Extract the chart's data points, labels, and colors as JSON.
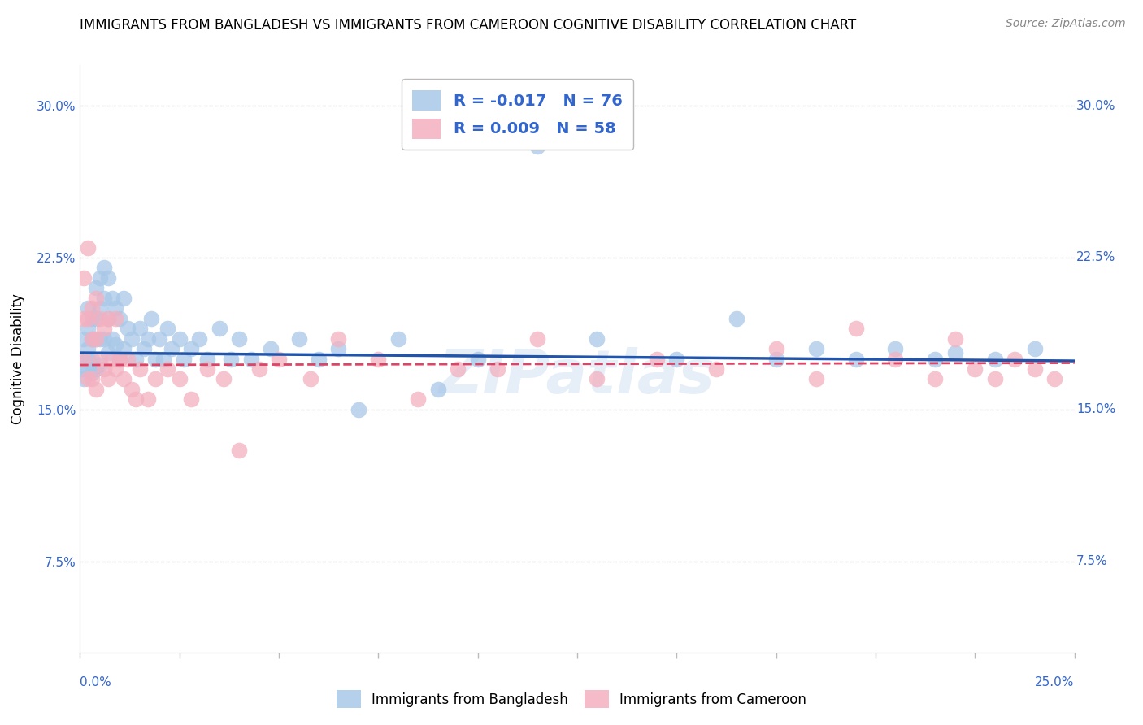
{
  "title": "IMMIGRANTS FROM BANGLADESH VS IMMIGRANTS FROM CAMEROON COGNITIVE DISABILITY CORRELATION CHART",
  "source": "Source: ZipAtlas.com",
  "ylabel": "Cognitive Disability",
  "xlim": [
    0.0,
    0.25
  ],
  "ylim": [
    0.03,
    0.32
  ],
  "ytick_positions": [
    0.075,
    0.15,
    0.225,
    0.3
  ],
  "ytick_labels": [
    "7.5%",
    "15.0%",
    "22.5%",
    "30.0%"
  ],
  "bangladesh_color": "#a8c8e8",
  "cameroon_color": "#f4b0c0",
  "bangladesh_line_color": "#2255aa",
  "cameroon_line_color": "#dd4466",
  "legend_R_bangladesh": "-0.017",
  "legend_N_bangladesh": "76",
  "legend_R_cameroon": "0.009",
  "legend_N_cameroon": "58",
  "watermark": "ZIPatlas",
  "bangladesh_x": [
    0.001,
    0.001,
    0.001,
    0.001,
    0.002,
    0.002,
    0.002,
    0.002,
    0.002,
    0.003,
    0.003,
    0.003,
    0.003,
    0.004,
    0.004,
    0.004,
    0.004,
    0.005,
    0.005,
    0.005,
    0.005,
    0.006,
    0.006,
    0.006,
    0.007,
    0.007,
    0.007,
    0.008,
    0.008,
    0.009,
    0.009,
    0.01,
    0.01,
    0.011,
    0.011,
    0.012,
    0.013,
    0.014,
    0.015,
    0.016,
    0.017,
    0.018,
    0.019,
    0.02,
    0.021,
    0.022,
    0.023,
    0.025,
    0.026,
    0.028,
    0.03,
    0.032,
    0.035,
    0.038,
    0.04,
    0.043,
    0.048,
    0.055,
    0.06,
    0.065,
    0.07,
    0.08,
    0.09,
    0.1,
    0.115,
    0.13,
    0.15,
    0.165,
    0.175,
    0.185,
    0.195,
    0.205,
    0.215,
    0.22,
    0.23,
    0.24
  ],
  "bangladesh_y": [
    0.185,
    0.175,
    0.17,
    0.165,
    0.2,
    0.19,
    0.18,
    0.175,
    0.17,
    0.195,
    0.185,
    0.175,
    0.168,
    0.21,
    0.195,
    0.185,
    0.17,
    0.215,
    0.2,
    0.185,
    0.172,
    0.22,
    0.205,
    0.185,
    0.215,
    0.195,
    0.178,
    0.205,
    0.185,
    0.2,
    0.182,
    0.195,
    0.175,
    0.205,
    0.18,
    0.19,
    0.185,
    0.175,
    0.19,
    0.18,
    0.185,
    0.195,
    0.175,
    0.185,
    0.175,
    0.19,
    0.18,
    0.185,
    0.175,
    0.18,
    0.185,
    0.175,
    0.19,
    0.175,
    0.185,
    0.175,
    0.18,
    0.185,
    0.175,
    0.18,
    0.15,
    0.185,
    0.16,
    0.175,
    0.28,
    0.185,
    0.175,
    0.195,
    0.175,
    0.18,
    0.175,
    0.18,
    0.175,
    0.178,
    0.175,
    0.18
  ],
  "cameroon_x": [
    0.001,
    0.001,
    0.001,
    0.002,
    0.002,
    0.002,
    0.003,
    0.003,
    0.003,
    0.004,
    0.004,
    0.004,
    0.005,
    0.005,
    0.006,
    0.006,
    0.007,
    0.007,
    0.008,
    0.009,
    0.009,
    0.01,
    0.011,
    0.012,
    0.013,
    0.014,
    0.015,
    0.017,
    0.019,
    0.022,
    0.025,
    0.028,
    0.032,
    0.036,
    0.04,
    0.045,
    0.05,
    0.058,
    0.065,
    0.075,
    0.085,
    0.095,
    0.105,
    0.115,
    0.13,
    0.145,
    0.16,
    0.175,
    0.185,
    0.195,
    0.205,
    0.215,
    0.22,
    0.225,
    0.23,
    0.235,
    0.24,
    0.245
  ],
  "cameroon_y": [
    0.215,
    0.195,
    0.175,
    0.23,
    0.195,
    0.165,
    0.2,
    0.185,
    0.165,
    0.205,
    0.185,
    0.16,
    0.195,
    0.175,
    0.19,
    0.17,
    0.195,
    0.165,
    0.175,
    0.195,
    0.17,
    0.175,
    0.165,
    0.175,
    0.16,
    0.155,
    0.17,
    0.155,
    0.165,
    0.17,
    0.165,
    0.155,
    0.17,
    0.165,
    0.13,
    0.17,
    0.175,
    0.165,
    0.185,
    0.175,
    0.155,
    0.17,
    0.17,
    0.185,
    0.165,
    0.175,
    0.17,
    0.18,
    0.165,
    0.19,
    0.175,
    0.165,
    0.185,
    0.17,
    0.165,
    0.175,
    0.17,
    0.165
  ],
  "bangladesh_line": {
    "x0": 0.0,
    "x1": 0.25,
    "y0": 0.178,
    "y1": 0.174
  },
  "cameroon_line": {
    "x0": 0.0,
    "x1": 0.25,
    "y0": 0.172,
    "y1": 0.173
  }
}
